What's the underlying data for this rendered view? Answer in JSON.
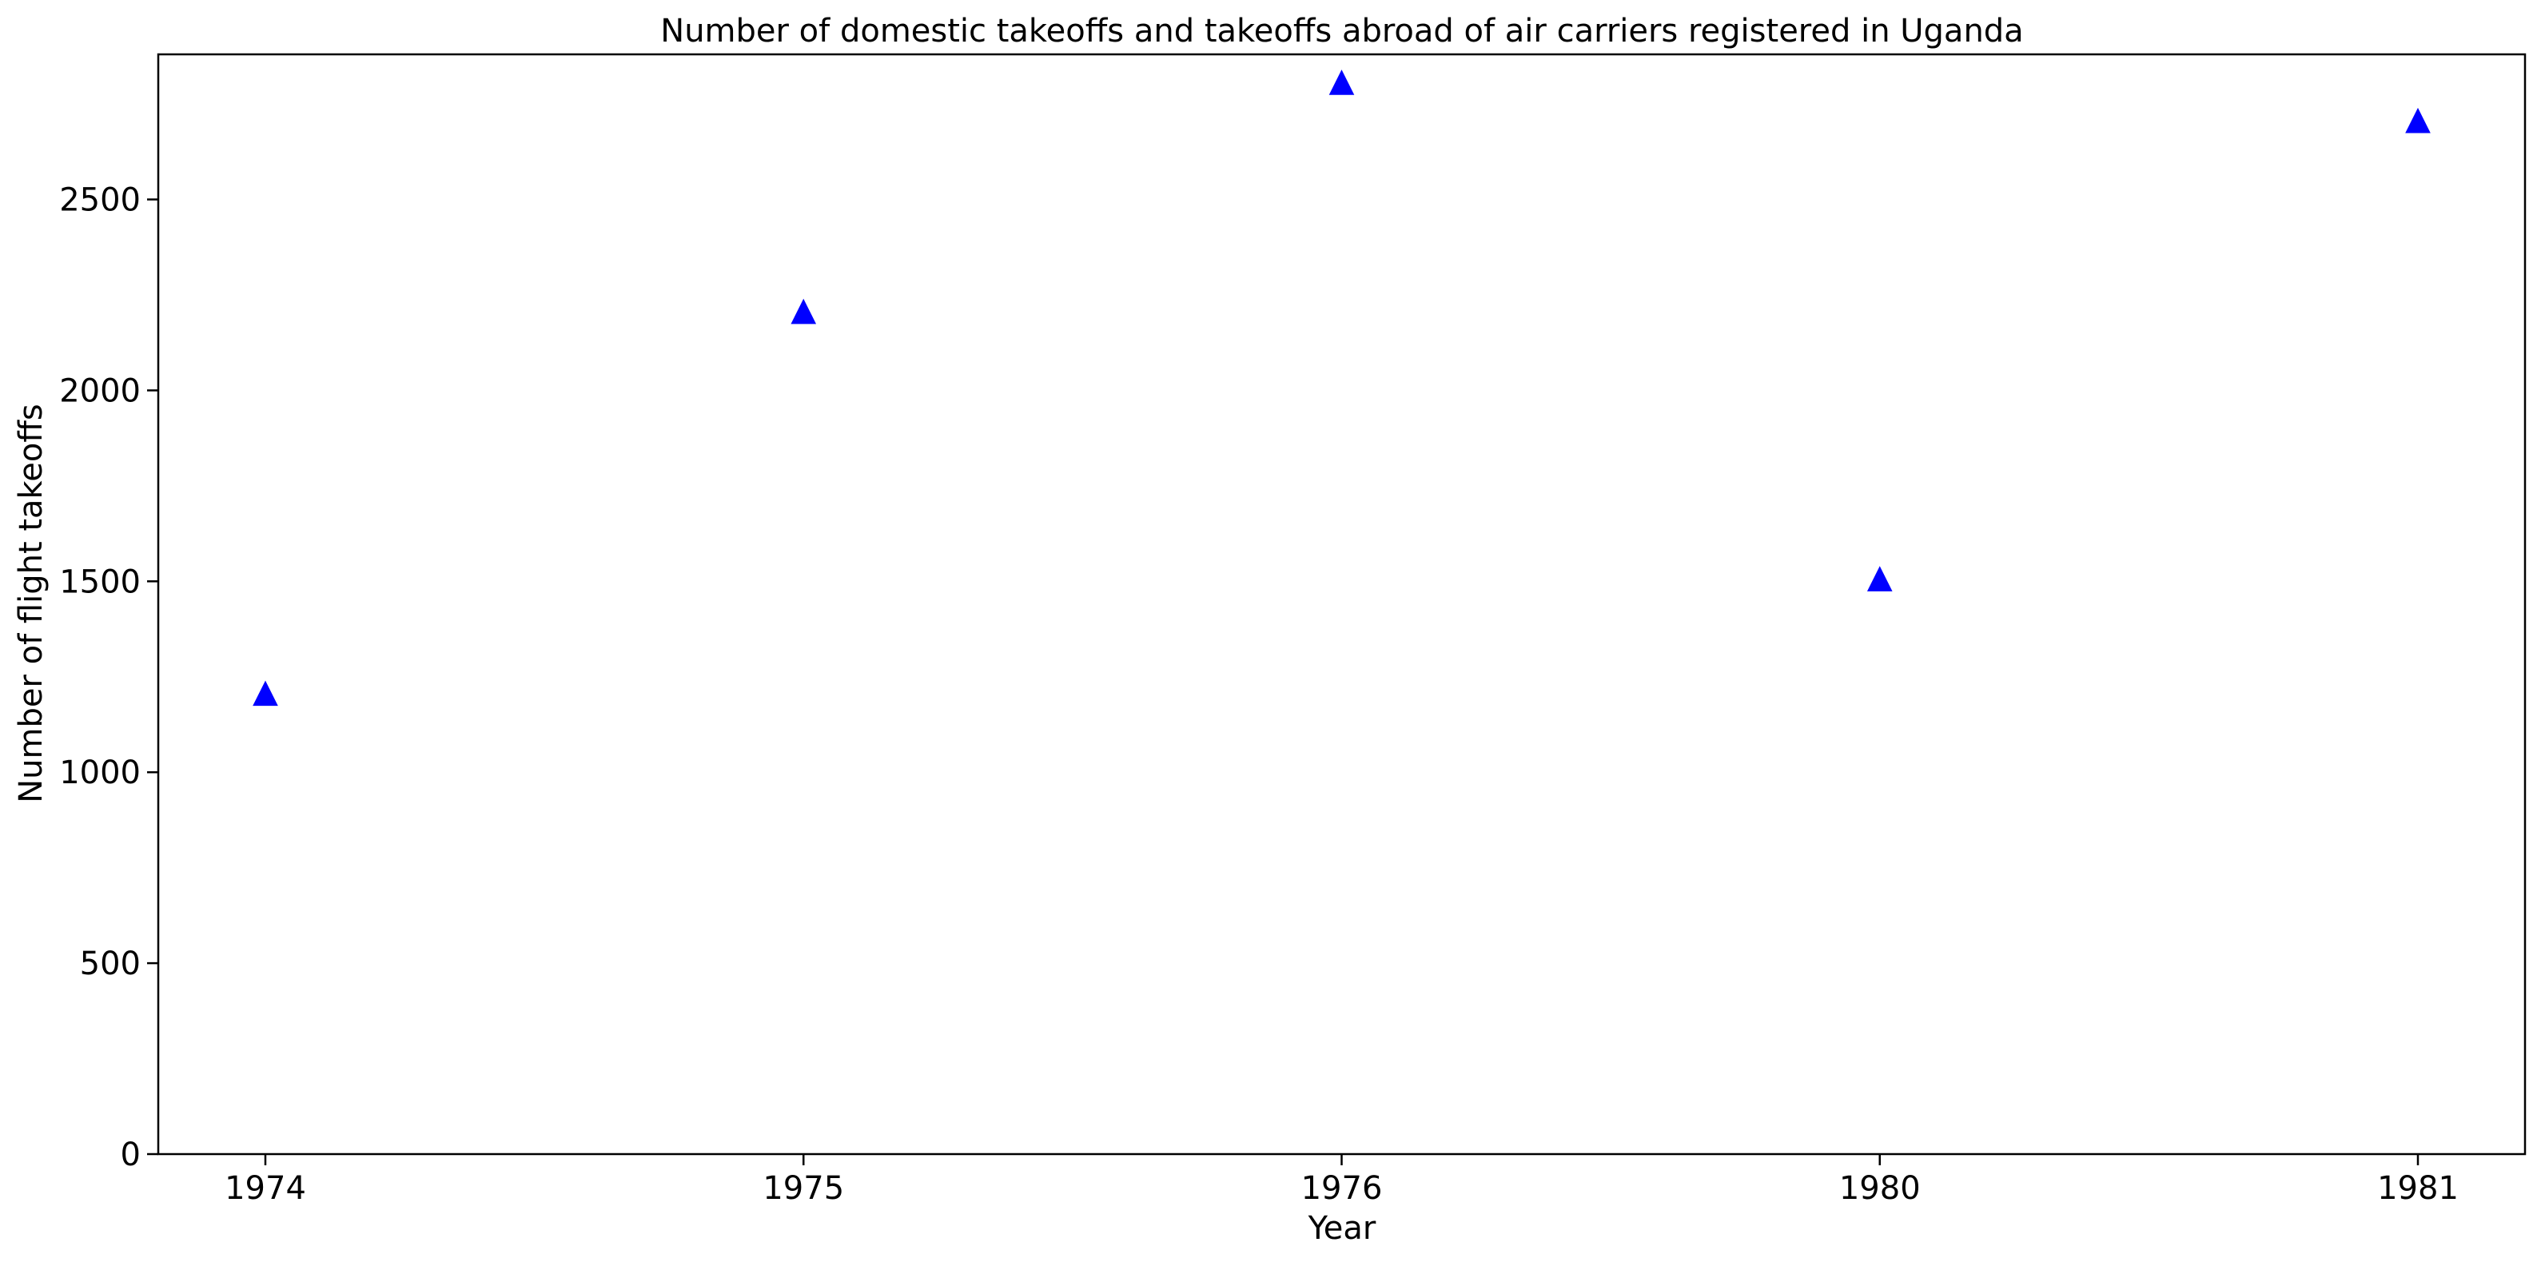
{
  "chart_data": {
    "type": "scatter",
    "title": "Number of domestic takeoffs and takeoffs abroad of air carriers registered in Uganda",
    "xlabel": "Year",
    "ylabel": "Number of flight takeoffs",
    "categories": [
      "1974",
      "1975",
      "1976",
      "1980",
      "1981"
    ],
    "series": [
      {
        "values": [
          1200,
          2200,
          2800,
          1500,
          2700
        ],
        "color": "#0000ff",
        "marker": "triangle-up"
      }
    ],
    "ylim": [
      0,
      2880
    ],
    "yticks": [
      0,
      500,
      1000,
      1500,
      2000,
      2500
    ],
    "grid": false,
    "legend": "none"
  }
}
